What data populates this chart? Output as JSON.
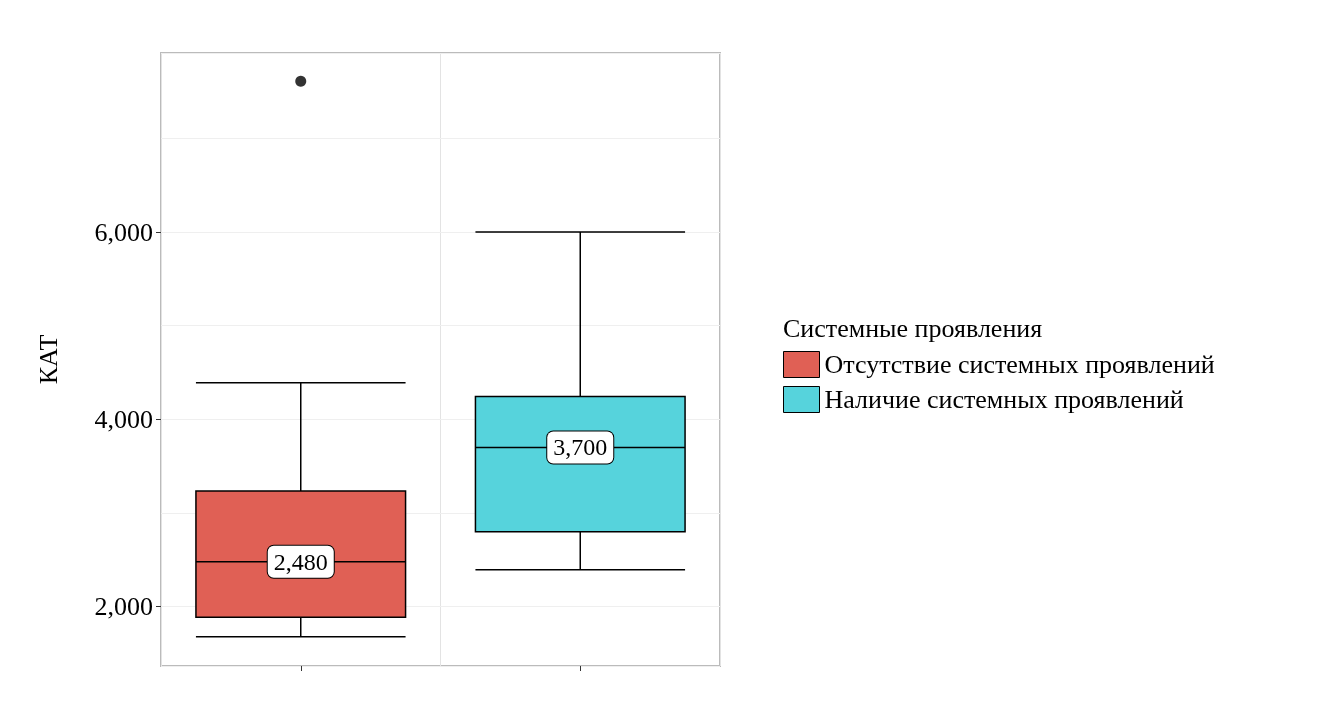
{
  "chart_data": {
    "type": "box",
    "ylabel": "КАТ",
    "legend_title": "Системные проявления",
    "categories": [
      null,
      null
    ],
    "ylim": [
      1366,
      7912
    ],
    "yticks": [
      {
        "value": 2000,
        "label": "2,000"
      },
      {
        "value": 3000,
        "label": null
      },
      {
        "value": 4000,
        "label": "4,000"
      },
      {
        "value": 5000,
        "label": null
      },
      {
        "value": 6000,
        "label": "6,000"
      },
      {
        "value": 7000,
        "label": null
      }
    ],
    "grid": true,
    "legend": "right",
    "series": [
      {
        "name": "Отсутствие системных проявлений",
        "color": "#e06055",
        "boxes": [
          {
            "low": 1678,
            "q1": 1886,
            "median": 2480,
            "q3": 3236,
            "high": 4390,
            "outliers": [
              7610
            ]
          },
          null
        ],
        "value_labels": [
          "2,480",
          null
        ]
      },
      {
        "name": "Наличие системных проявлений",
        "color": "#56d3dc",
        "boxes": [
          null,
          {
            "low": 2395,
            "q1": 2800,
            "median": 3700,
            "q3": 4244,
            "high": 6000
          }
        ],
        "value_labels": [
          null,
          "3,700"
        ]
      }
    ]
  }
}
